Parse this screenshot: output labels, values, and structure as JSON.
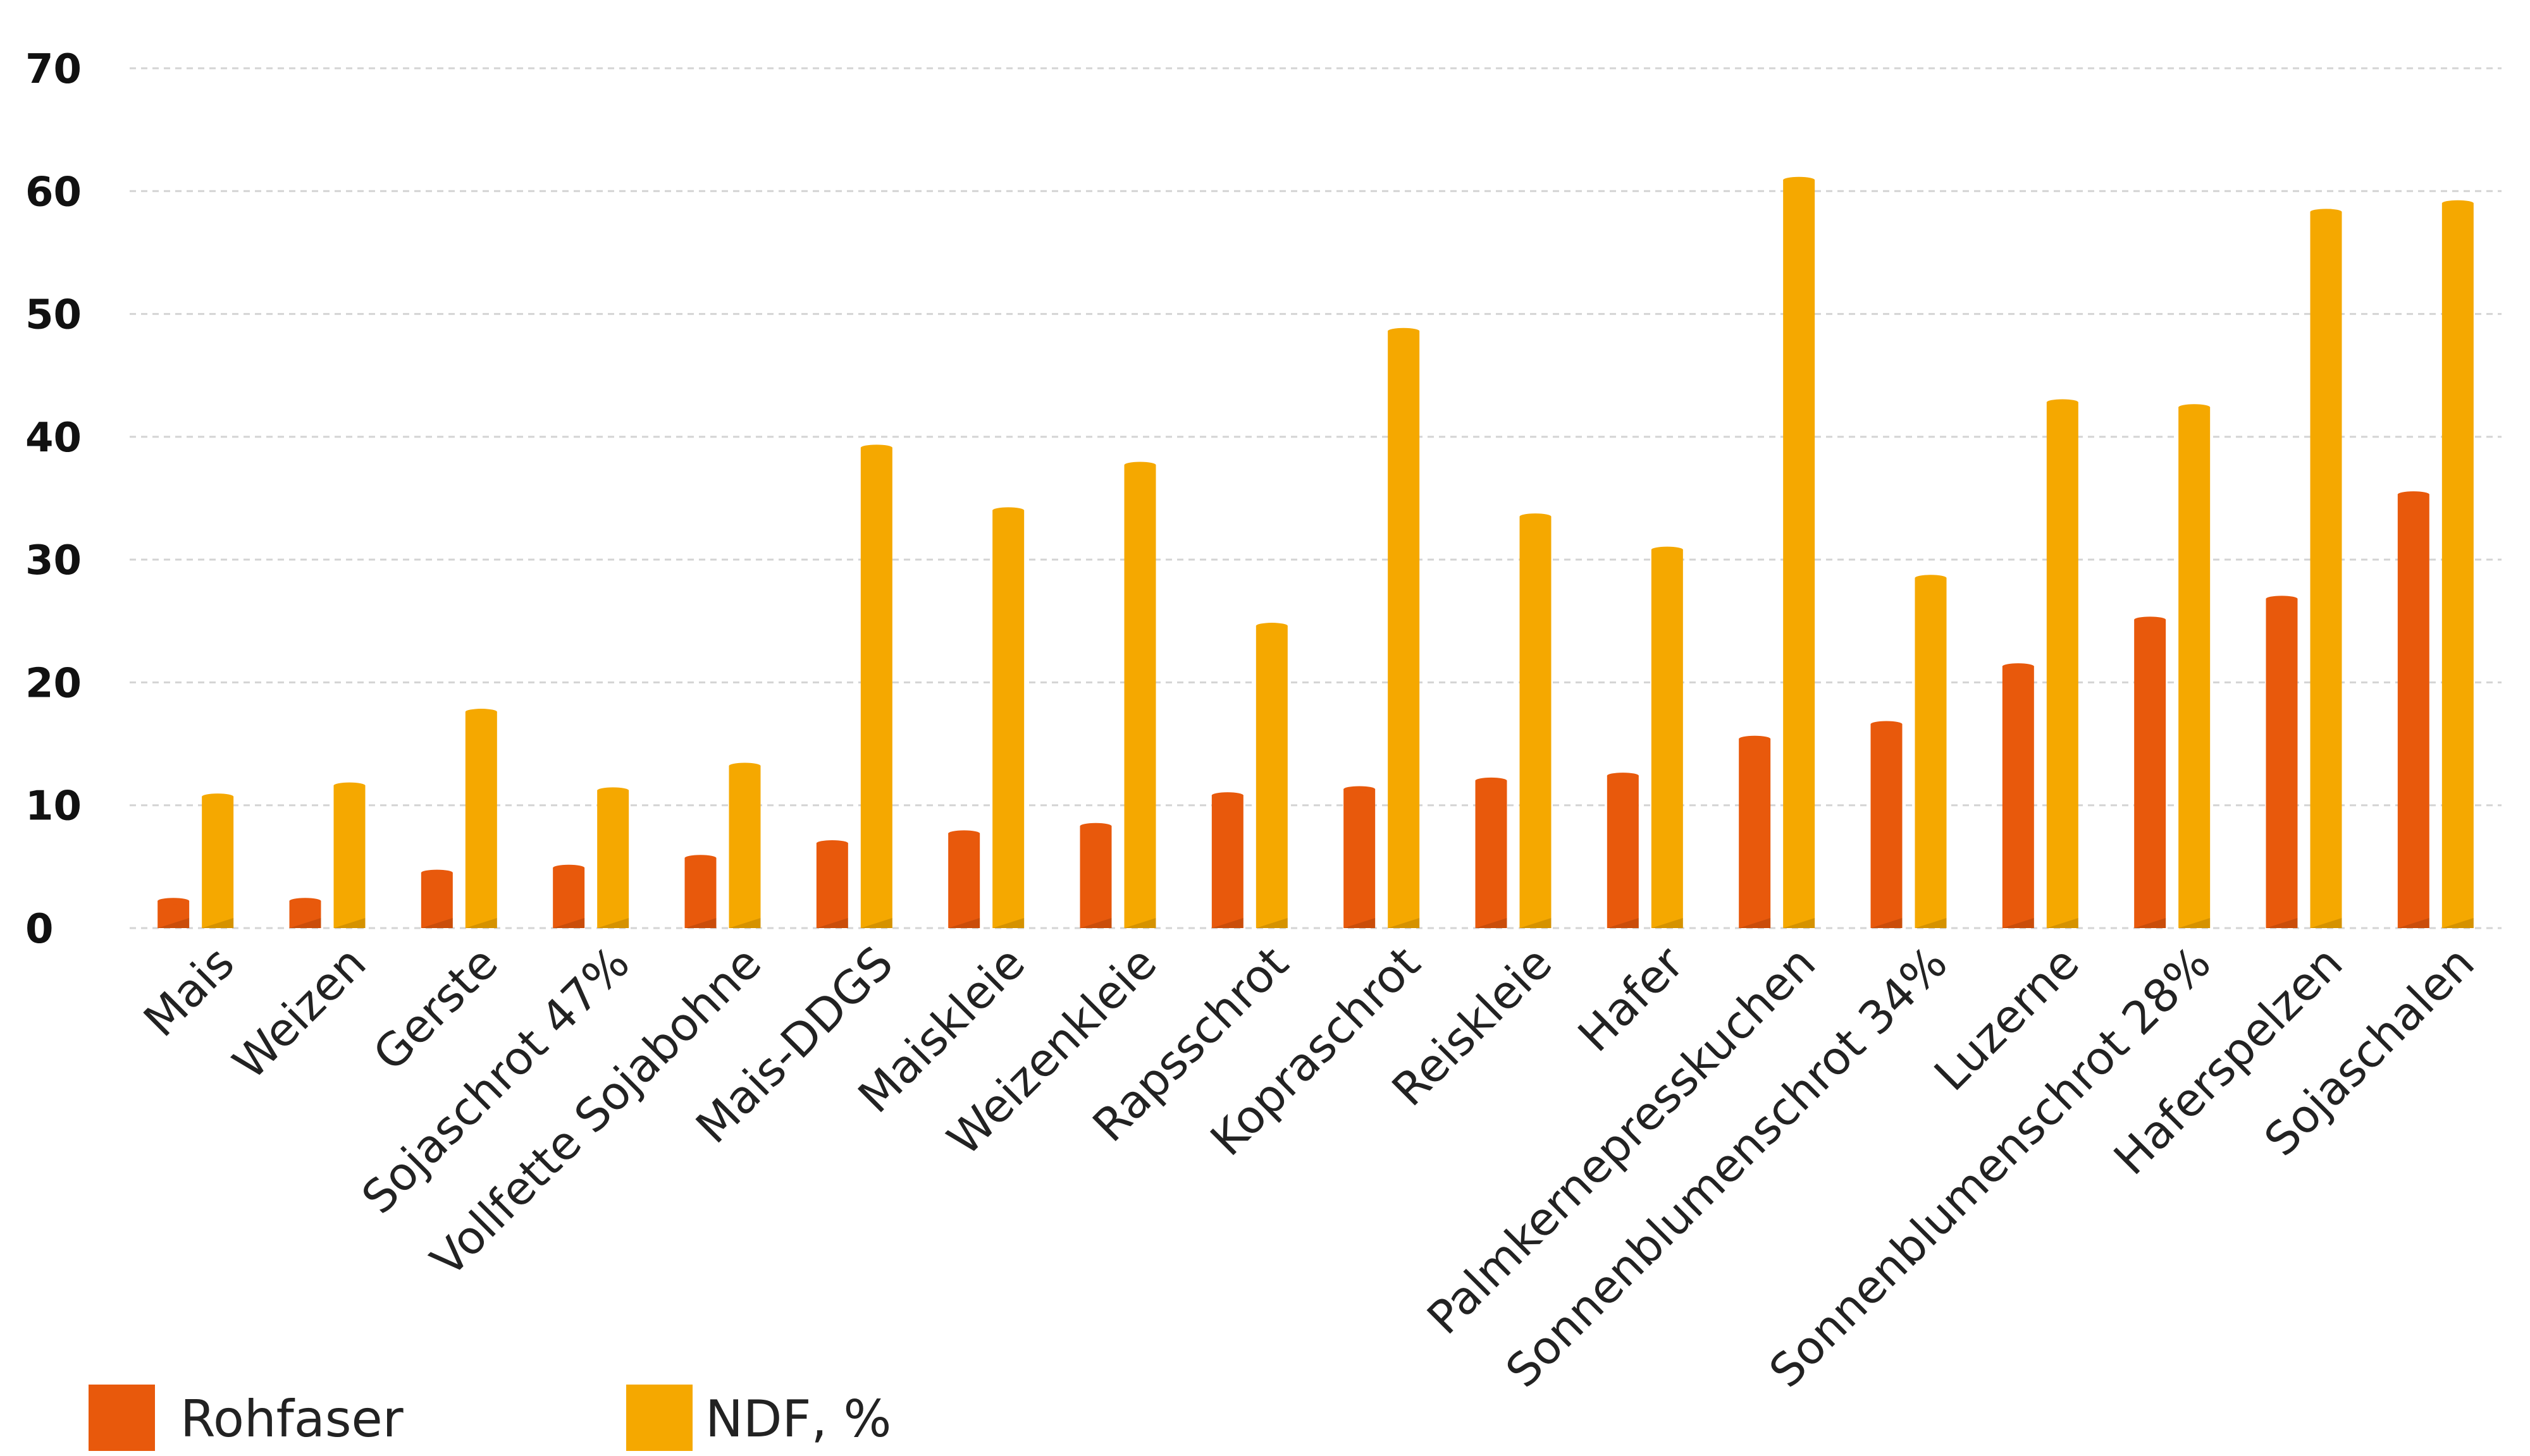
{
  "chart_data": {
    "type": "bar",
    "title": "",
    "xlabel": "",
    "ylabel": "",
    "ylim": [
      0,
      70
    ],
    "yticks": [
      0,
      10,
      20,
      30,
      40,
      50,
      60,
      70
    ],
    "grid": true,
    "legend_position": "bottom-left",
    "categories": [
      "Mais",
      "Weizen",
      "Gerste",
      "Sojaschrot 47%",
      "Vollfette Sojabohne",
      "Mais-DDGS",
      "Maiskleie",
      "Weizenkleie",
      "Rapsschrot",
      "Kopraschrot",
      "Reiskleie",
      "Hafer",
      "Palmkernepresskuchen",
      "Sonnenblumenschrot 34%",
      "Luzerne",
      "Sonnenblumenschrot 28%",
      "Haferspelzen",
      "Sojaschalen"
    ],
    "series": [
      {
        "name": "Rohfaser",
        "color": "#e8590c",
        "values": [
          2.2,
          2.2,
          4.5,
          4.9,
          5.7,
          6.9,
          7.7,
          8.3,
          10.8,
          11.3,
          12.0,
          12.4,
          15.4,
          16.6,
          21.3,
          25.1,
          26.8,
          35.3
        ]
      },
      {
        "name": "NDF, %",
        "color": "#f5a800",
        "values": [
          10.7,
          11.6,
          17.6,
          11.2,
          13.2,
          39.1,
          34.0,
          37.7,
          24.6,
          48.6,
          33.5,
          30.8,
          60.9,
          28.5,
          42.8,
          42.4,
          58.3,
          59.0
        ]
      }
    ]
  }
}
